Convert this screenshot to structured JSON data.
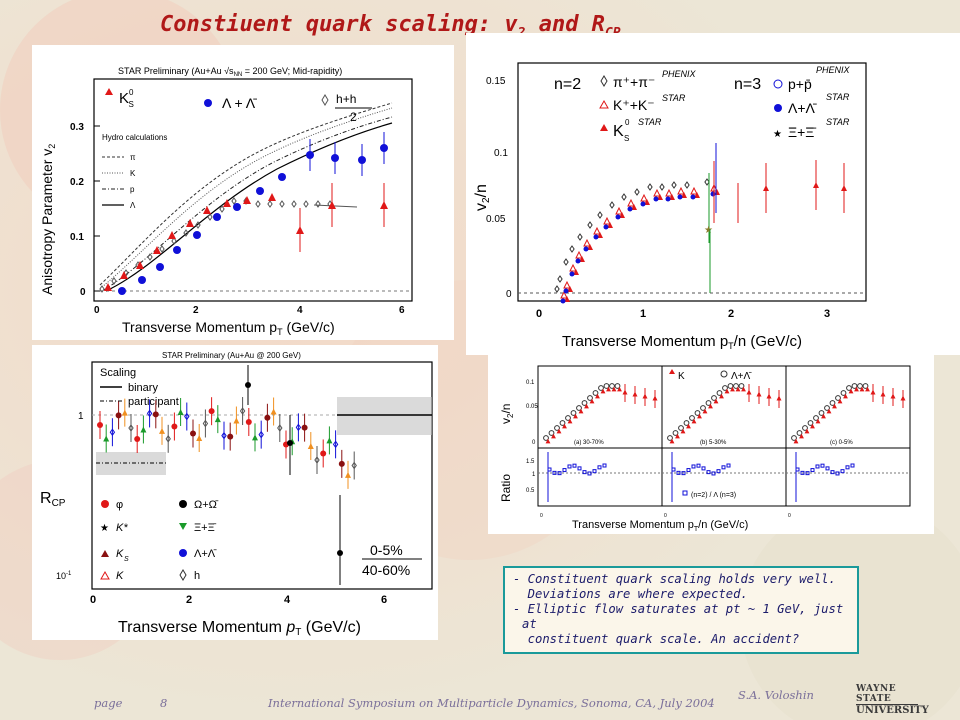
{
  "title": {
    "main": "Constiuent quark scaling: v",
    "sub1": "2",
    "mid": " and R",
    "sub2": "CP"
  },
  "panel_tl": {
    "header": "STAR Preliminary (Au+Au √s",
    "header_sub": "NN",
    "header_rest": " = 200 GeV; Mid-rapidity)",
    "ylabel": "Anisotropy Parameter v",
    "ylabel_sub": "2",
    "xlabel": "Transverse Momentum p",
    "xlabel_sub": "T",
    "xlabel_unit": " (GeV/c)",
    "yticks": [
      "0",
      "0.1",
      "0.2",
      "0.3"
    ],
    "xticks": [
      "0",
      "2",
      "4",
      "6"
    ],
    "legend_k": "K",
    "legend_k_sup": "0",
    "legend_k_sub": "S",
    "legend_lam": "Λ + Λ̄",
    "legend_h": "h",
    "legend_h_rest": "+h",
    "legend_h_den": "2",
    "hydro": "Hydro calculations",
    "hydro_items": [
      "π",
      "K",
      "p",
      "Λ"
    ]
  },
  "panel_tr": {
    "n2": "n=2",
    "n3": "n=3",
    "items_left": [
      "π⁺+π⁻",
      "K⁺+K⁻",
      "K"
    ],
    "items_left_tags": [
      "PHENIX",
      "STAR",
      "STAR"
    ],
    "items_right": [
      "p+p̄",
      "Λ+Λ̄",
      "Ξ+Ξ̄"
    ],
    "items_right_tags": [
      "PHENIX",
      "STAR",
      "STAR"
    ],
    "ylabel": "v",
    "ylabel_sub": "2",
    "ylabel_rest": "/n",
    "xlabel": "Transverse Momentum p",
    "xlabel_sub": "T",
    "xlabel_rest": "/n (GeV/c)",
    "yticks": [
      "0",
      "0.05",
      "0.1",
      "0.15"
    ],
    "xticks": [
      "0",
      "1",
      "2",
      "3"
    ]
  },
  "panel_bl": {
    "header": "STAR Preliminary (Au+Au @ 200 GeV)",
    "scaling": "Scaling",
    "binary": "binary",
    "participant": "participant",
    "ylabel": "R",
    "ylabel_sub": "CP",
    "yticks": [
      "10",
      "1"
    ],
    "ytick_exp": "-1",
    "xticks": [
      "0",
      "2",
      "4",
      "6"
    ],
    "xlabel": "Transverse Momentum ",
    "xlabel_p": "p",
    "xlabel_sub": "T",
    "xlabel_unit": " (GeV/c)",
    "legend": [
      "φ",
      "Ω+Ω̄",
      "K*",
      "Ξ+Ξ̄",
      "K",
      "Λ+Λ̄",
      "K",
      "h"
    ],
    "centrality_top": "0-5%",
    "centrality_bottom": "40-60%"
  },
  "panel_br": {
    "ylabel_top": "v",
    "ylabel_top_sub": "2",
    "ylabel_top_rest": "/n",
    "ylabel_bottom": "Ratio",
    "legend_k": "K",
    "legend_lam": "Λ+Λ̄",
    "sub_labels": [
      "(a) 30-70%",
      "(b) 5-30%",
      "(c) 0-5%"
    ],
    "ratio_label": "(n=2) / Λ (n=3)",
    "xlabel": "Transverse Momentum p",
    "xlabel_sub": "T",
    "xlabel_rest": "/n (GeV/c)"
  },
  "notes": [
    "- Constituent quark scaling holds very well.",
    "  Deviations are where expected.",
    "- Elliptic flow saturates at pt ~ 1 GeV, just at",
    "  constituent quark scale. An accident?"
  ],
  "footer": {
    "page_label": "page",
    "page_number": "8",
    "conference": "International Symposium on Multiparticle Dynamics, Sonoma, CA, July 2004",
    "author": "S.A. Voloshin",
    "logo_top": "WAYNE STATE",
    "logo_bottom": "UNIVERSITY"
  },
  "colors": {
    "title": "#b01818",
    "note_border": "#1a9a9a",
    "note_text": "#1b1b6a",
    "red": "#e01818",
    "blue": "#1010d8",
    "green": "#1a9a2a",
    "orange": "#f09020",
    "darkred": "#8a1010"
  }
}
